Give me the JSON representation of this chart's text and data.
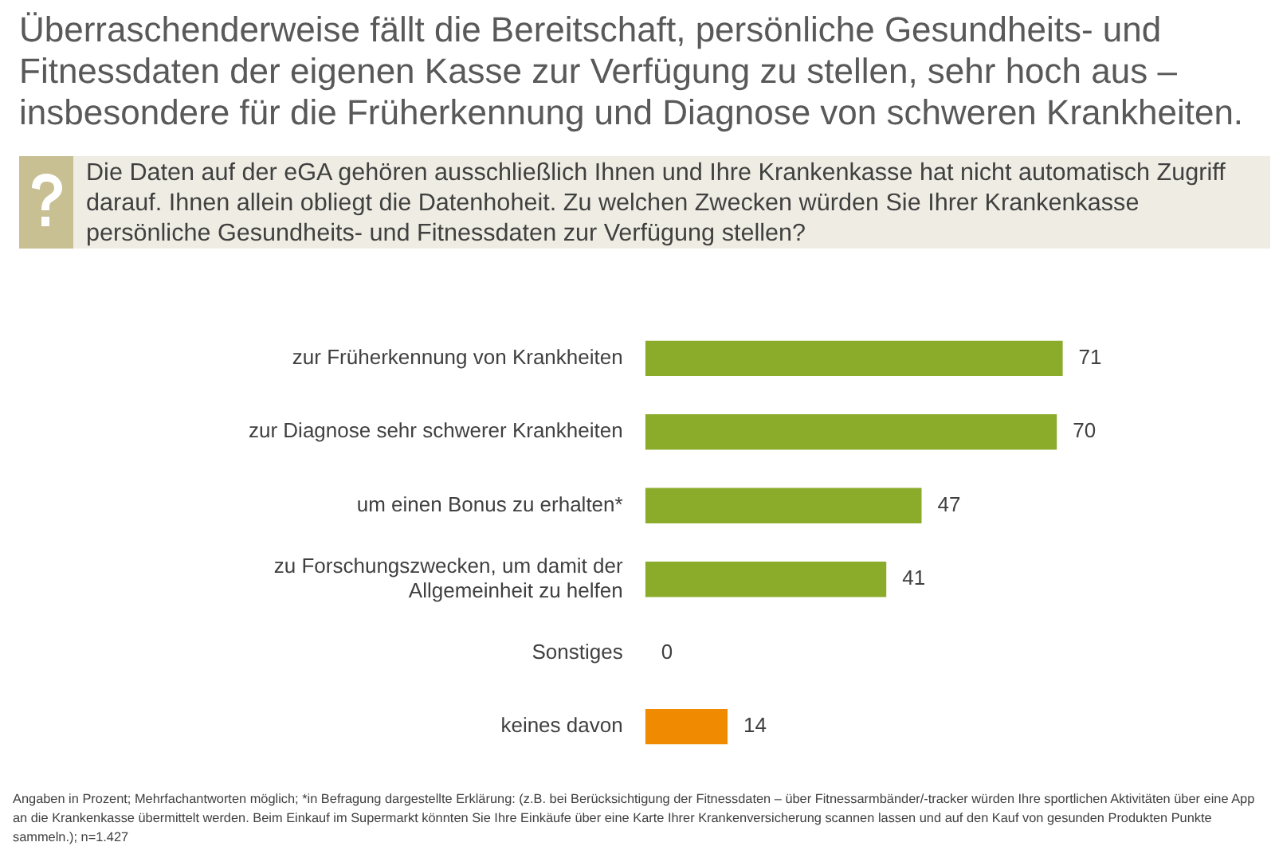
{
  "chart_data": {
    "type": "bar",
    "orientation": "horizontal",
    "title": "Überraschenderweise fällt die Bereitschaft, persönliche Gesundheits- und Fitnessdaten der eigenen Kasse zur Verfügung zu stellen, sehr hoch aus – insbesondere für die Früherkennung und Diagnose von schweren Krankheiten.",
    "subtitle": "Die Daten auf der eGA gehören ausschließlich Ihnen und Ihre Krankenkasse hat nicht automatisch Zugriff darauf. Ihnen allein obliegt die Datenhoheit. Zu welchen Zwecken würden Sie Ihrer Krankenkasse persönliche Gesundheits- und Fitnessdaten zur Verfügung stellen?",
    "categories": [
      "zur Früherkennung von Krankheiten",
      "zur Diagnose sehr schwerer Krankheiten",
      "um einen Bonus zu erhalten*",
      "zu Forschungszwecken, um damit der Allgemeinheit zu helfen",
      "Sonstiges",
      "keines davon"
    ],
    "values": [
      71,
      70,
      47,
      41,
      0,
      14
    ],
    "colors": [
      "#8bab2b",
      "#8bab2b",
      "#8bab2b",
      "#8bab2b",
      "#8bab2b",
      "#f08a00"
    ],
    "data_labels": true,
    "legend": false,
    "annotations": [
      "Angaben in Prozent; Mehrfachantworten möglich; *in Befragung dargestellte Erklärung: (z.B. bei Berücksichtigung der Fitnessdaten – über Fitnessarmbänder/-tracker würden Ihre sportlichen Aktivitäten über eine App an die Krankenkasse übermittelt werden. Beim Einkauf im Supermarkt könnten Sie Ihre Einkäufe über eine Karte Ihrer Krankenversicherung scannen lassen und auf den Kauf von gesunden Produkten Punkte sammeln.); n=1.427"
    ]
  }
}
